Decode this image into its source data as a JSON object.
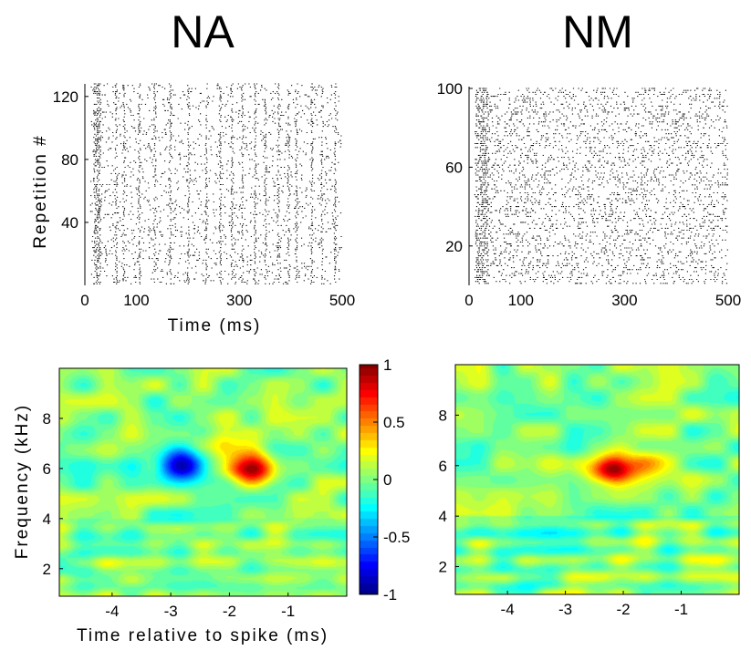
{
  "chart_data": [
    {
      "type": "scatter",
      "id": "raster-na",
      "panel_title": "NA",
      "description_kind": "spike raster",
      "xlabel": "Time  (ms)",
      "ylabel": "Repetition  #",
      "xlim": [
        0,
        500
      ],
      "ylim": [
        0,
        128
      ],
      "xticks": [
        0,
        100,
        300,
        500
      ],
      "yticks": [
        40,
        80,
        120
      ],
      "repetitions": 128,
      "locked_spike_times_ms": [
        18,
        22,
        25,
        28,
        60,
        75,
        105,
        135,
        165,
        200,
        235,
        262,
        285,
        305,
        330,
        350,
        375,
        395,
        410,
        440,
        460,
        485
      ]
    },
    {
      "type": "scatter",
      "id": "raster-nm",
      "panel_title": "NM",
      "description_kind": "spike raster",
      "xlabel": "",
      "ylabel": "",
      "xlim": [
        0,
        500
      ],
      "ylim": [
        0,
        100
      ],
      "xticks": [
        0,
        100,
        300,
        500
      ],
      "yticks": [
        20,
        60,
        100
      ],
      "repetitions": 100
    },
    {
      "type": "heatmap",
      "id": "strf-na",
      "xlabel": "Time relative to spike (ms)",
      "ylabel": "Frequency  (kHz)",
      "xlim": [
        -4.9,
        0
      ],
      "ylim": [
        0.9,
        10
      ],
      "xticks": [
        -4,
        -3,
        -2,
        -1
      ],
      "yticks": [
        2,
        4,
        6,
        8
      ],
      "blobs": [
        {
          "t": -2.8,
          "f": 6.1,
          "amp": -1.0
        },
        {
          "t": -1.6,
          "f": 6.0,
          "amp": 1.0
        },
        {
          "t": -2.2,
          "f": 7.0,
          "amp": 0.2
        }
      ]
    },
    {
      "type": "heatmap",
      "id": "strf-nm",
      "xlabel": "",
      "ylabel": "",
      "xlim": [
        -4.9,
        0
      ],
      "ylim": [
        0.9,
        10
      ],
      "xticks": [
        -4,
        -3,
        -2,
        -1
      ],
      "yticks": [
        2,
        4,
        6,
        8
      ],
      "blobs": [
        {
          "t": -2.2,
          "f": 5.9,
          "amp": 1.0
        },
        {
          "t": -1.4,
          "f": 6.1,
          "amp": 0.25
        }
      ]
    }
  ],
  "colorbar": {
    "min": -1,
    "max": 1,
    "ticks": [
      -1,
      -0.5,
      0,
      0.5,
      1
    ],
    "colormap": "jet"
  }
}
